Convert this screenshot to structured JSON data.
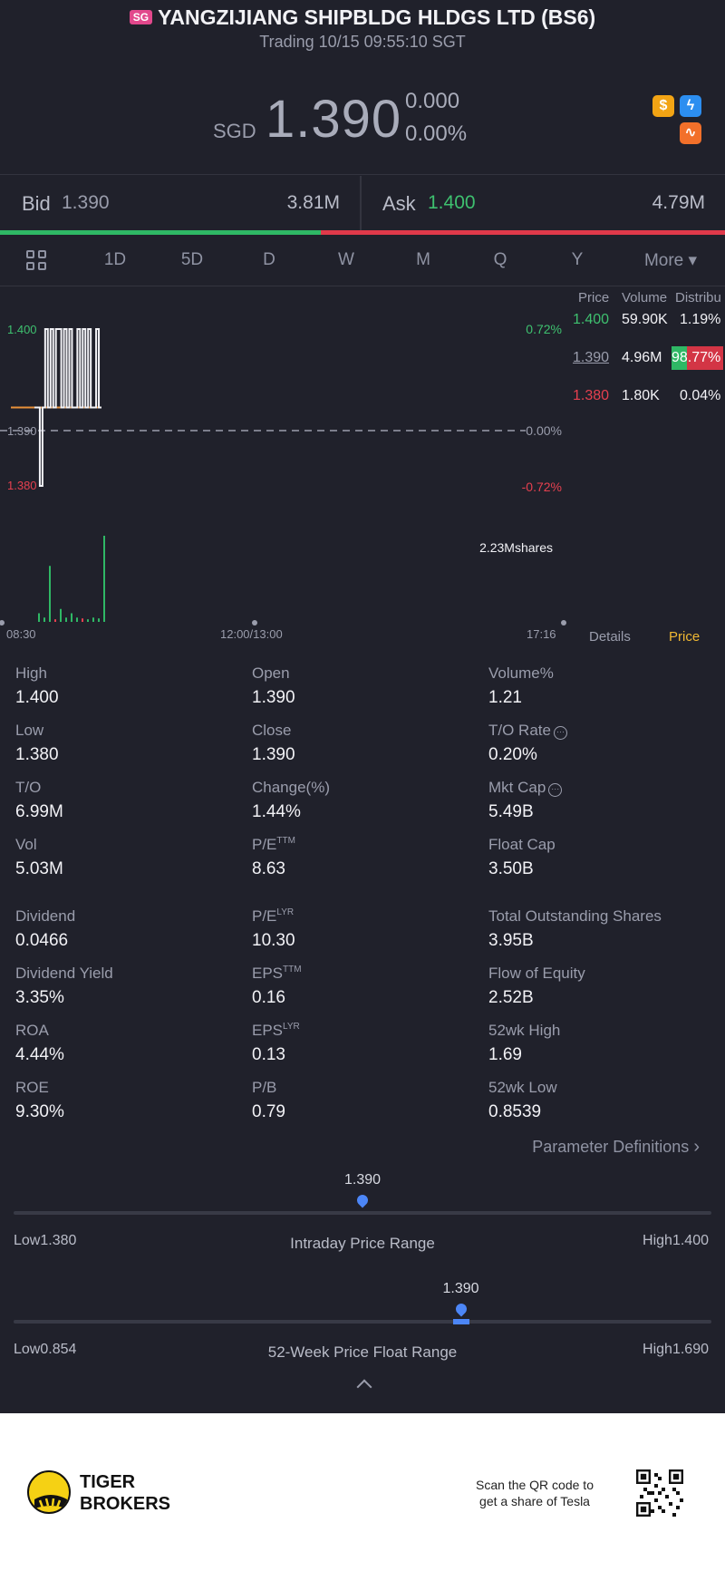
{
  "header": {
    "market_badge": "SG",
    "title": "YANGZIJIANG SHIPBLDG HLDGS LTD (BS6)",
    "subtitle": "Trading 10/15 09:55:10 SGT"
  },
  "quote": {
    "currency": "SGD",
    "price": "1.390",
    "change": "0.000",
    "change_pct": "0.00%"
  },
  "quote_icons": [
    "dollar-icon",
    "lightning-icon",
    "chart-swirl-icon"
  ],
  "bid_ask": {
    "bid_label": "Bid",
    "bid_price": "1.390",
    "bid_volume": "3.81M",
    "ask_label": "Ask",
    "ask_price": "1.400",
    "ask_volume": "4.79M",
    "bid_fraction": 0.443
  },
  "tabs": [
    {
      "label": "1D",
      "active": true
    },
    {
      "label": "5D",
      "active": false
    },
    {
      "label": "D",
      "active": false
    },
    {
      "label": "W",
      "active": false
    },
    {
      "label": "M",
      "active": false
    },
    {
      "label": "Q",
      "active": false
    },
    {
      "label": "Y",
      "active": false
    },
    {
      "label": "More ▾",
      "active": false
    }
  ],
  "chart_data": {
    "type": "line",
    "y_left_ticks": [
      "1.400",
      "1.390",
      "1.380"
    ],
    "y_right_ticks": [
      "0.72%",
      "0.00%",
      "-0.72%"
    ],
    "x_ticks": [
      "08:30",
      "12:00/13:00",
      "17:16"
    ],
    "ylim": [
      1.38,
      1.4
    ],
    "prev_close": 1.39,
    "volume_label": "2.23Mshares",
    "price_series": [
      1.39,
      1.39,
      1.38,
      1.39,
      1.4,
      1.39,
      1.4,
      1.39,
      1.4,
      1.4,
      1.39,
      1.4,
      1.39,
      1.4,
      1.39,
      1.39,
      1.4,
      1.39,
      1.4,
      1.39,
      1.4,
      1.39,
      1.39,
      1.4,
      1.39,
      1.39
    ],
    "volume_bars": [
      0.1,
      0.05,
      0.65,
      0.03,
      0.15,
      0.05,
      0.1,
      0.05,
      0.04,
      0.03,
      0.05,
      0.04,
      1.0
    ]
  },
  "order_book": {
    "headers": [
      "Price",
      "Volume",
      "Distribu"
    ],
    "rows": [
      {
        "price": "1.400",
        "volume": "59.90K",
        "dist": "1.19%"
      },
      {
        "price": "1.390",
        "volume": "4.96M",
        "dist": "98.77%"
      },
      {
        "price": "1.380",
        "volume": "1.80K",
        "dist": "0.04%"
      }
    ]
  },
  "panel_tabs": {
    "details": "Details",
    "price": "Price"
  },
  "stats": [
    [
      {
        "label": "High",
        "value": "1.400"
      },
      {
        "label": "Open",
        "value": "1.390"
      },
      {
        "label": "Volume%",
        "value": "1.21"
      }
    ],
    [
      {
        "label": "Low",
        "value": "1.380"
      },
      {
        "label": "Close",
        "value": "1.390"
      },
      {
        "label": "T/O Rate",
        "value": "0.20%"
      }
    ],
    [
      {
        "label": "T/O",
        "value": "6.99M"
      },
      {
        "label": "Change(%)",
        "value": "1.44%"
      },
      {
        "label": "Mkt Cap",
        "value": "5.49B"
      }
    ],
    [
      {
        "label": "Vol",
        "value": "5.03M"
      },
      {
        "label": "P/E",
        "sup": "TTM",
        "value": "8.63"
      },
      {
        "label": "Float Cap",
        "value": "3.50B"
      }
    ],
    [
      {
        "label": "Dividend",
        "value": "0.0466"
      },
      {
        "label": "P/E",
        "sup": "LYR",
        "value": "10.30"
      },
      {
        "label": "Total Outstanding Shares",
        "value": "3.95B"
      }
    ],
    [
      {
        "label": "Dividend Yield",
        "value": "3.35%"
      },
      {
        "label": "EPS",
        "sup": "TTM",
        "value": "0.16"
      },
      {
        "label": "Flow of Equity",
        "value": "2.52B"
      }
    ],
    [
      {
        "label": "ROA",
        "value": "4.44%"
      },
      {
        "label": "EPS",
        "sup": "LYR",
        "value": "0.13"
      },
      {
        "label": "52wk High",
        "value": "1.69"
      }
    ],
    [
      {
        "label": "ROE",
        "value": "9.30%"
      },
      {
        "label": "P/B",
        "value": "0.79"
      },
      {
        "label": "52wk Low",
        "value": "0.8539"
      }
    ]
  ],
  "param_defs": "Parameter Definitions",
  "intraday_range": {
    "current": "1.390",
    "low": "Low1.380",
    "high": "High1.400",
    "title": "Intraday Price Range",
    "position": 0.5
  },
  "week52_range": {
    "current": "1.390",
    "low": "Low0.854",
    "high": "High1.690",
    "title": "52-Week Price Float Range",
    "position": 0.641
  },
  "footer": {
    "brand_line1": "TIGER",
    "brand_line2": "BROKERS",
    "qr_text1": "Scan the QR code to",
    "qr_text2": "get a share of Tesla"
  }
}
